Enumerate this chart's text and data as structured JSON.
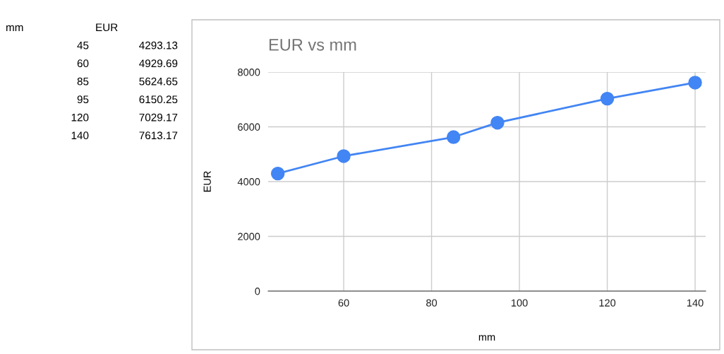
{
  "chart_data": [
    {
      "type": "other",
      "annotations": [
        "mm",
        "EUR",
        "45",
        "4293.13",
        "60",
        "4929.69",
        "85",
        "5624.65",
        "95",
        "6150.25",
        "120",
        "7029.17",
        "140",
        "7613.17"
      ]
    },
    {
      "type": "line",
      "title": "EUR vs mm",
      "xlabel": "mm",
      "ylabel": "EUR",
      "x": [
        45,
        60,
        85,
        95,
        120,
        140
      ],
      "series": [
        {
          "color": "#4285f4",
          "values": [
            4293.13,
            4929.69,
            5624.65,
            6150.25,
            7029.17,
            7613.17
          ]
        }
      ],
      "xlim": [
        42.8,
        142.4
      ],
      "xticks": [
        60,
        80,
        100,
        120,
        140
      ],
      "ylim": [
        0,
        8000
      ],
      "yticks": [
        0,
        2000,
        4000,
        6000,
        8000
      ],
      "grid": true,
      "marker": "circle",
      "line_style": "solid"
    }
  ]
}
